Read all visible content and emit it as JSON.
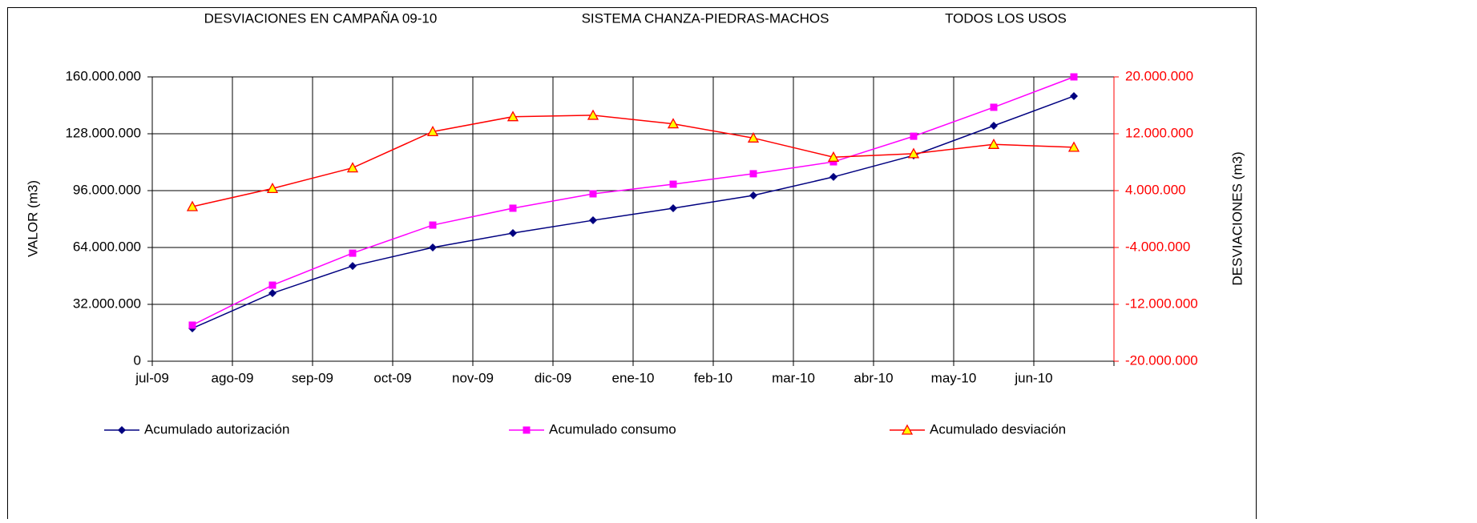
{
  "chart_data": {
    "type": "line",
    "titles": [
      "DESVIACIONES EN CAMPAÑA 09-10",
      "SISTEMA CHANZA-PIEDRAS-MACHOS",
      "TODOS LOS USOS"
    ],
    "ylabel": "VALOR (m3)",
    "y2label": "DESVIACIONES (m3)",
    "categories": [
      "jul-09",
      "ago-09",
      "sep-09",
      "oct-09",
      "nov-09",
      "dic-09",
      "ene-10",
      "feb-10",
      "mar-10",
      "abr-10",
      "may-10",
      "jun-10"
    ],
    "series": [
      {
        "name": "Acumulado autorización",
        "color": "#000080",
        "marker": "diamond",
        "values": [
          18500000,
          38300000,
          53600000,
          64000000,
          72100000,
          79300000,
          86100000,
          93300000,
          103700000,
          115800000,
          132500000,
          149200000
        ]
      },
      {
        "name": "Acumulado consumo",
        "color": "#ff00ff",
        "marker": "square",
        "values": [
          20300000,
          42800000,
          60800000,
          76600000,
          86100000,
          94200000,
          99600000,
          105500000,
          112200000,
          126600000,
          142900000,
          160000000
        ]
      },
      {
        "name": "Acumulado desviación",
        "color": "#ff0000",
        "marker": "triangle",
        "axis": "y2",
        "values": [
          1750000,
          4300000,
          7200000,
          12300000,
          14400000,
          14600000,
          13400000,
          11400000,
          8700000,
          9200000,
          10500000,
          10100000
        ]
      }
    ],
    "ylim": [
      0,
      160000000
    ],
    "yticks": [
      0,
      {
        "value": 32000000,
        "label": "32.000.000"
      },
      {
        "value": 64000000,
        "label": "64.000.000"
      },
      {
        "value": 96000000,
        "label": "96.000.000"
      },
      {
        "value": 128000000,
        "label": "128.000.000"
      },
      {
        "value": 160000000,
        "label": "160.000.000"
      }
    ],
    "y2lim": [
      -20000000,
      20000000
    ],
    "y2ticks": [
      {
        "value": -20000000,
        "label": "-20.000.000"
      },
      {
        "value": -12000000,
        "label": "-12.000.000"
      },
      {
        "value": -4000000,
        "label": "-4.000.000"
      },
      {
        "value": 4000000,
        "label": "4.000.000"
      },
      {
        "value": 12000000,
        "label": "12.000.000"
      },
      {
        "value": 20000000,
        "label": "20.000.000"
      }
    ],
    "y2color": "#ff0000",
    "grid": true,
    "legend": "bottom"
  }
}
